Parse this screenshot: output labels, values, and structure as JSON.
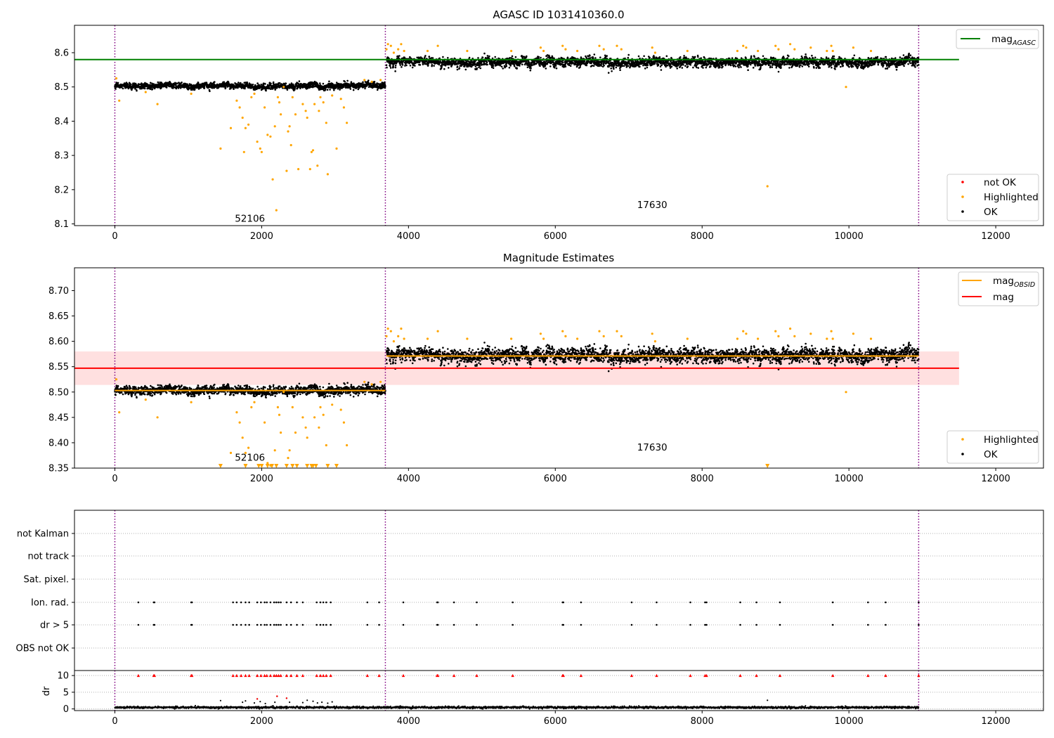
{
  "chart_data": [
    {
      "id": "agasc",
      "type": "scatter",
      "title": "AGASC ID 1031410360.0",
      "xlim": [
        -550,
        12650
      ],
      "ylim": [
        8.095,
        8.68
      ],
      "xticks": [
        0,
        2000,
        4000,
        6000,
        8000,
        10000,
        12000
      ],
      "yticks": [
        8.1,
        8.2,
        8.3,
        8.4,
        8.5,
        8.6
      ],
      "obs_boundaries": [
        0,
        3685,
        10950
      ],
      "obs_labels": [
        {
          "text": "52106",
          "x": 1840,
          "y": 8.115
        },
        {
          "text": "17630",
          "x": 7320,
          "y": 8.155
        }
      ],
      "hline": {
        "name": "mag",
        "sub": "AGASC",
        "y": 8.58,
        "x0": -550,
        "x1": 11500,
        "color": "#008000"
      },
      "legends": {
        "lines": [
          {
            "name": "mag",
            "sub": "AGASC",
            "color": "#008000"
          }
        ],
        "points": [
          {
            "name": "not OK",
            "color": "#ff0000"
          },
          {
            "name": "Highlighted",
            "color": "#ffa500"
          },
          {
            "name": "OK",
            "color": "#000000"
          }
        ]
      },
      "segments": [
        {
          "x0": 0,
          "x1": 3685,
          "mean": 8.503,
          "jitter": 0.007
        },
        {
          "x0": 3700,
          "x1": 10950,
          "mean": 8.572,
          "jitter": 0.011
        }
      ],
      "highlighted": [
        [
          20,
          8.525
        ],
        [
          60,
          8.46
        ],
        [
          420,
          8.485
        ],
        [
          580,
          8.45
        ],
        [
          1040,
          8.48
        ],
        [
          1440,
          8.32
        ],
        [
          1580,
          8.38
        ],
        [
          1660,
          8.46
        ],
        [
          1700,
          8.44
        ],
        [
          1740,
          8.41
        ],
        [
          1760,
          8.31
        ],
        [
          1780,
          8.38
        ],
        [
          1820,
          8.39
        ],
        [
          1860,
          8.47
        ],
        [
          1900,
          8.48
        ],
        [
          1940,
          8.34
        ],
        [
          1980,
          8.32
        ],
        [
          2000,
          8.31
        ],
        [
          2040,
          8.44
        ],
        [
          2080,
          8.36
        ],
        [
          2120,
          8.355
        ],
        [
          2150,
          8.23
        ],
        [
          2180,
          8.385
        ],
        [
          2200,
          8.14
        ],
        [
          2220,
          8.47
        ],
        [
          2240,
          8.455
        ],
        [
          2260,
          8.42
        ],
        [
          2300,
          8.5
        ],
        [
          2340,
          8.255
        ],
        [
          2360,
          8.37
        ],
        [
          2380,
          8.385
        ],
        [
          2400,
          8.33
        ],
        [
          2420,
          8.47
        ],
        [
          2460,
          8.42
        ],
        [
          2500,
          8.26
        ],
        [
          2560,
          8.45
        ],
        [
          2600,
          8.43
        ],
        [
          2620,
          8.41
        ],
        [
          2660,
          8.26
        ],
        [
          2680,
          8.31
        ],
        [
          2700,
          8.315
        ],
        [
          2720,
          8.45
        ],
        [
          2760,
          8.27
        ],
        [
          2780,
          8.43
        ],
        [
          2800,
          8.47
        ],
        [
          2840,
          8.455
        ],
        [
          2880,
          8.395
        ],
        [
          2900,
          8.245
        ],
        [
          2960,
          8.475
        ],
        [
          3020,
          8.32
        ],
        [
          3080,
          8.465
        ],
        [
          3120,
          8.44
        ],
        [
          3160,
          8.395
        ],
        [
          3400,
          8.52
        ],
        [
          3500,
          8.515
        ],
        [
          3620,
          8.52
        ],
        [
          3700,
          8.61
        ],
        [
          3720,
          8.625
        ],
        [
          3760,
          8.62
        ],
        [
          3800,
          8.6
        ],
        [
          3860,
          8.61
        ],
        [
          3900,
          8.625
        ],
        [
          3940,
          8.605
        ],
        [
          4260,
          8.605
        ],
        [
          4400,
          8.62
        ],
        [
          4800,
          8.605
        ],
        [
          5400,
          8.605
        ],
        [
          5800,
          8.615
        ],
        [
          5840,
          8.605
        ],
        [
          6100,
          8.62
        ],
        [
          6140,
          8.61
        ],
        [
          6300,
          8.605
        ],
        [
          6600,
          8.62
        ],
        [
          6660,
          8.61
        ],
        [
          6840,
          8.62
        ],
        [
          6900,
          8.61
        ],
        [
          7320,
          8.615
        ],
        [
          7360,
          8.6
        ],
        [
          7800,
          8.605
        ],
        [
          8480,
          8.605
        ],
        [
          8560,
          8.62
        ],
        [
          8600,
          8.615
        ],
        [
          8760,
          8.605
        ],
        [
          8890,
          8.21
        ],
        [
          9000,
          8.62
        ],
        [
          9040,
          8.61
        ],
        [
          9200,
          8.625
        ],
        [
          9260,
          8.61
        ],
        [
          9480,
          8.615
        ],
        [
          9700,
          8.605
        ],
        [
          9760,
          8.62
        ],
        [
          9780,
          8.605
        ],
        [
          9960,
          8.5
        ],
        [
          10060,
          8.615
        ],
        [
          10300,
          8.605
        ]
      ]
    },
    {
      "id": "mag",
      "type": "scatter",
      "title": "Magnitude Estimates",
      "xlim": [
        -550,
        12650
      ],
      "ylim": [
        8.35,
        8.745
      ],
      "xticks": [
        0,
        2000,
        4000,
        6000,
        8000,
        10000,
        12000
      ],
      "yticks": [
        8.35,
        8.4,
        8.45,
        8.5,
        8.55,
        8.6,
        8.65,
        8.7
      ],
      "ytick_labels": [
        "8.35",
        "8.40",
        "8.45",
        "8.50",
        "8.55",
        "8.60",
        "8.65",
        "8.70"
      ],
      "obs_boundaries": [
        0,
        3685,
        10950
      ],
      "obs_labels": [
        {
          "text": "52106",
          "x": 1840,
          "y": 8.37
        },
        {
          "text": "17630",
          "x": 7320,
          "y": 8.39
        }
      ],
      "band": {
        "y0": 8.514,
        "y1": 8.58,
        "x0": -550,
        "x1": 11500,
        "color": "#ffcccc"
      },
      "hlines": [
        {
          "name": "mag",
          "sub": "OBSID",
          "y": 8.503,
          "x0": 0,
          "x1": 3685,
          "color": "#ffa500"
        },
        {
          "name": "mag",
          "sub": "OBSID",
          "y": 8.571,
          "x0": 3700,
          "x1": 10950,
          "color": "#ffa500"
        },
        {
          "name": "mag",
          "sub": "",
          "y": 8.547,
          "x0": -550,
          "x1": 11500,
          "color": "#ff0000"
        }
      ],
      "legends": {
        "lines": [
          {
            "name": "mag",
            "sub": "OBSID",
            "color": "#ffa500"
          },
          {
            "name": "mag",
            "sub": "",
            "color": "#ff0000"
          }
        ],
        "points": [
          {
            "name": "Highlighted",
            "color": "#ffa500"
          },
          {
            "name": "OK",
            "color": "#000000"
          }
        ]
      },
      "segments": [
        {
          "x0": 0,
          "x1": 3685,
          "mean": 8.503,
          "jitter": 0.007
        },
        {
          "x0": 3700,
          "x1": 10950,
          "mean": 8.572,
          "jitter": 0.011
        }
      ],
      "clipped_markers": [
        1440,
        1780,
        1960,
        2000,
        2080,
        2140,
        2200,
        2340,
        2420,
        2480,
        2620,
        2680,
        2700,
        2740,
        2900,
        3020,
        8890
      ]
    },
    {
      "id": "flags",
      "type": "scatter",
      "title": "",
      "xlim": [
        -550,
        12650
      ],
      "categories": [
        "OBS not OK",
        "dr > 5",
        "Ion. rad.",
        "Sat. pixel.",
        "not track",
        "not Kalman"
      ],
      "obs_boundaries": [
        0,
        3685,
        10950
      ],
      "flag_points": {
        "dr > 5": [
          320,
          530,
          540,
          1040,
          1050,
          1610,
          1660,
          1720,
          1780,
          1830,
          1940,
          1990,
          2040,
          2070,
          2120,
          2170,
          2200,
          2230,
          2260,
          2340,
          2400,
          2480,
          2560,
          2750,
          2800,
          2840,
          2880,
          2940,
          3440,
          3600,
          3930,
          4390,
          4400,
          4620,
          4930,
          5420,
          6100,
          6110,
          6350,
          7040,
          7380,
          7840,
          8040,
          8060,
          8520,
          8740,
          9060,
          9780,
          10260,
          10500,
          10950
        ],
        "Ion. rad.": [
          320,
          530,
          540,
          1040,
          1050,
          1610,
          1660,
          1720,
          1780,
          1830,
          1940,
          1990,
          2040,
          2070,
          2120,
          2170,
          2200,
          2230,
          2260,
          2340,
          2400,
          2480,
          2560,
          2750,
          2800,
          2840,
          2880,
          2940,
          3440,
          3600,
          3930,
          4390,
          4400,
          4620,
          4930,
          5420,
          6100,
          6110,
          6350,
          7040,
          7380,
          7840,
          8040,
          8060,
          8520,
          8740,
          9060,
          9780,
          10260,
          10500,
          10950
        ]
      }
    },
    {
      "id": "dr",
      "type": "scatter",
      "title": "",
      "ylabel": "dr",
      "xlim": [
        -550,
        12650
      ],
      "ylim": [
        -0.5,
        11.5
      ],
      "yticks": [
        0,
        5,
        10
      ],
      "xticks": [
        0,
        2000,
        4000,
        6000,
        8000,
        10000,
        12000
      ],
      "obs_boundaries": [
        0,
        3685,
        10950
      ],
      "clip_value": 10,
      "clipped_x": [
        320,
        530,
        540,
        1040,
        1050,
        1610,
        1660,
        1720,
        1780,
        1830,
        1940,
        1990,
        2040,
        2070,
        2120,
        2170,
        2200,
        2230,
        2260,
        2340,
        2400,
        2480,
        2560,
        2750,
        2800,
        2840,
        2880,
        2940,
        3440,
        3600,
        3930,
        4390,
        4400,
        4620,
        4930,
        5420,
        6100,
        6110,
        6350,
        7040,
        7380,
        7840,
        8040,
        8060,
        8520,
        8740,
        9060,
        9780,
        10260,
        10500,
        10950
      ],
      "scatter_points": [
        [
          1440,
          2.5
        ],
        [
          1740,
          2.0
        ],
        [
          1780,
          2.4
        ],
        [
          1900,
          1.8
        ],
        [
          1940,
          3.0
        ],
        [
          1980,
          2.2
        ],
        [
          2050,
          1.6
        ],
        [
          2180,
          2.0
        ],
        [
          2210,
          3.8
        ],
        [
          2340,
          3.2
        ],
        [
          2380,
          2.0
        ],
        [
          2560,
          1.9
        ],
        [
          2620,
          2.6
        ],
        [
          2700,
          2.3
        ],
        [
          2760,
          1.8
        ],
        [
          2820,
          2.0
        ],
        [
          2900,
          1.7
        ],
        [
          2960,
          2.1
        ],
        [
          8890,
          2.6
        ]
      ],
      "red_points": [
        [
          2210,
          3.8
        ],
        [
          2340,
          3.2
        ],
        [
          1940,
          3.0
        ]
      ],
      "baseline": {
        "x0": 0,
        "x1": 10950,
        "mean": 0.45,
        "jitter": 0.3
      }
    }
  ]
}
